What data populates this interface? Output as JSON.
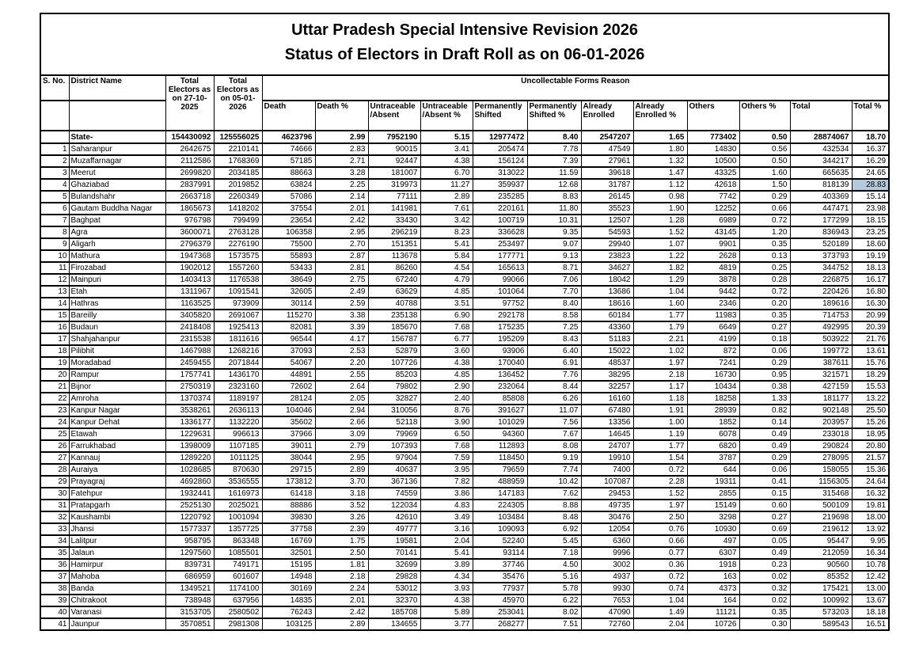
{
  "title_line1": "Uttar Pradesh Special Intensive Revision 2026",
  "title_line2": "Status of Electors in Draft Roll as on 06-01-2026",
  "table": {
    "header": {
      "s_no": "S. No.",
      "district": "District Name",
      "total_1": "Total Electors as on 27-10-2025",
      "total_2": "Total Electors as on 05-01-2026",
      "group": "Uncollectable Forms Reason",
      "sub": [
        "Death",
        "Death %",
        "Untraceable /Absent",
        "Untraceable /Absent %",
        "Permanently Shifted",
        "Permanently Shifted %",
        "Already Enrolled",
        "Already Enrolled %",
        "Others",
        "Others %",
        "Total",
        "Total %"
      ]
    },
    "state_row": [
      "",
      "State-",
      "154430092",
      "125556025",
      "4623796",
      "2.99",
      "7952190",
      "5.15",
      "12977472",
      "8.40",
      "2547207",
      "1.65",
      "773402",
      "0.50",
      "28874067",
      "18.70"
    ],
    "rows": [
      [
        "1",
        "Saharanpur",
        "2642675",
        "2210141",
        "74666",
        "2.83",
        "90015",
        "3.41",
        "205474",
        "7.78",
        "47549",
        "1.80",
        "14830",
        "0.56",
        "432534",
        "16.37"
      ],
      [
        "2",
        "Muzaffarnagar",
        "2112586",
        "1768369",
        "57185",
        "2.71",
        "92447",
        "4.38",
        "156124",
        "7.39",
        "27961",
        "1.32",
        "10500",
        "0.50",
        "344217",
        "16.29"
      ],
      [
        "3",
        "Meerut",
        "2699820",
        "2034185",
        "88663",
        "3.28",
        "181007",
        "6.70",
        "313022",
        "11.59",
        "39618",
        "1.47",
        "43325",
        "1.60",
        "665635",
        "24.65"
      ],
      [
        "4",
        "Ghaziabad",
        "2837991",
        "2019852",
        "63824",
        "2.25",
        "319973",
        "11.27",
        "359937",
        "12.68",
        "31787",
        "1.12",
        "42618",
        "1.50",
        "818139",
        "28.83"
      ],
      [
        "5",
        "Bulandshahr",
        "2663718",
        "2260349",
        "57086",
        "2.14",
        "77111",
        "2.89",
        "235285",
        "8.83",
        "26145",
        "0.98",
        "7742",
        "0.29",
        "403369",
        "15.14"
      ],
      [
        "6",
        "Gautam Buddha Nagar",
        "1865673",
        "1418202",
        "37554",
        "2.01",
        "141981",
        "7.61",
        "220161",
        "11.80",
        "35523",
        "1.90",
        "12252",
        "0.66",
        "447471",
        "23.98"
      ],
      [
        "7",
        "Baghpat",
        "976798",
        "799499",
        "23654",
        "2.42",
        "33430",
        "3.42",
        "100719",
        "10.31",
        "12507",
        "1.28",
        "6989",
        "0.72",
        "177299",
        "18.15"
      ],
      [
        "8",
        "Agra",
        "3600071",
        "2763128",
        "106358",
        "2.95",
        "296219",
        "8.23",
        "336628",
        "9.35",
        "54593",
        "1.52",
        "43145",
        "1.20",
        "836943",
        "23.25"
      ],
      [
        "9",
        "Aligarh",
        "2796379",
        "2276190",
        "75500",
        "2.70",
        "151351",
        "5.41",
        "253497",
        "9.07",
        "29940",
        "1.07",
        "9901",
        "0.35",
        "520189",
        "18.60"
      ],
      [
        "10",
        "Mathura",
        "1947368",
        "1573575",
        "55893",
        "2.87",
        "113678",
        "5.84",
        "177771",
        "9.13",
        "23823",
        "1.22",
        "2628",
        "0.13",
        "373793",
        "19.19"
      ],
      [
        "11",
        "Firozabad",
        "1902012",
        "1557260",
        "53433",
        "2.81",
        "86260",
        "4.54",
        "165613",
        "8.71",
        "34627",
        "1.82",
        "4819",
        "0.25",
        "344752",
        "18.13"
      ],
      [
        "12",
        "Mainpuri",
        "1403413",
        "1176538",
        "38649",
        "2.75",
        "67240",
        "4.79",
        "99066",
        "7.06",
        "18042",
        "1.29",
        "3878",
        "0.28",
        "226875",
        "16.17"
      ],
      [
        "13",
        "Etah",
        "1311967",
        "1091541",
        "32605",
        "2.49",
        "63629",
        "4.85",
        "101064",
        "7.70",
        "13686",
        "1.04",
        "9442",
        "0.72",
        "220426",
        "16.80"
      ],
      [
        "14",
        "Hathras",
        "1163525",
        "973909",
        "30114",
        "2.59",
        "40788",
        "3.51",
        "97752",
        "8.40",
        "18616",
        "1.60",
        "2346",
        "0.20",
        "189616",
        "16.30"
      ],
      [
        "15",
        "Bareilly",
        "3405820",
        "2691067",
        "115270",
        "3.38",
        "235138",
        "6.90",
        "292178",
        "8.58",
        "60184",
        "1.77",
        "11983",
        "0.35",
        "714753",
        "20.99"
      ],
      [
        "16",
        "Budaun",
        "2418408",
        "1925413",
        "82081",
        "3.39",
        "185670",
        "7.68",
        "175235",
        "7.25",
        "43360",
        "1.79",
        "6649",
        "0.27",
        "492995",
        "20.39"
      ],
      [
        "17",
        "Shahjahanpur",
        "2315538",
        "1811616",
        "96544",
        "4.17",
        "156787",
        "6.77",
        "195209",
        "8.43",
        "51183",
        "2.21",
        "4199",
        "0.18",
        "503922",
        "21.76"
      ],
      [
        "18",
        "Pilibhit",
        "1467988",
        "1268216",
        "37093",
        "2.53",
        "52879",
        "3.60",
        "93906",
        "6.40",
        "15022",
        "1.02",
        "872",
        "0.06",
        "199772",
        "13.61"
      ],
      [
        "19",
        "Moradabad",
        "2459455",
        "2071844",
        "54067",
        "2.20",
        "107726",
        "4.38",
        "170040",
        "6.91",
        "48537",
        "1.97",
        "7241",
        "0.29",
        "387611",
        "15.76"
      ],
      [
        "20",
        "Rampur",
        "1757741",
        "1436170",
        "44891",
        "2.55",
        "85203",
        "4.85",
        "136452",
        "7.76",
        "38295",
        "2.18",
        "16730",
        "0.95",
        "321571",
        "18.29"
      ],
      [
        "21",
        "Bijnor",
        "2750319",
        "2323160",
        "72602",
        "2.64",
        "79802",
        "2.90",
        "232064",
        "8.44",
        "32257",
        "1.17",
        "10434",
        "0.38",
        "427159",
        "15.53"
      ],
      [
        "22",
        "Amroha",
        "1370374",
        "1189197",
        "28124",
        "2.05",
        "32827",
        "2.40",
        "85808",
        "6.26",
        "16160",
        "1.18",
        "18258",
        "1.33",
        "181177",
        "13.22"
      ],
      [
        "23",
        "Kanpur Nagar",
        "3538261",
        "2636113",
        "104046",
        "2.94",
        "310056",
        "8.76",
        "391627",
        "11.07",
        "67480",
        "1.91",
        "28939",
        "0.82",
        "902148",
        "25.50"
      ],
      [
        "24",
        "Kanpur Dehat",
        "1336177",
        "1132220",
        "35602",
        "2.66",
        "52118",
        "3.90",
        "101029",
        "7.56",
        "13356",
        "1.00",
        "1852",
        "0.14",
        "203957",
        "15.26"
      ],
      [
        "25",
        "Etawah",
        "1229631",
        "996613",
        "37966",
        "3.09",
        "79969",
        "6.50",
        "94360",
        "7.67",
        "14645",
        "1.19",
        "6078",
        "0.49",
        "233018",
        "18.95"
      ],
      [
        "26",
        "Farrukhabad",
        "1398009",
        "1107185",
        "39011",
        "2.79",
        "107393",
        "7.68",
        "112893",
        "8.08",
        "24707",
        "1.77",
        "6820",
        "0.49",
        "290824",
        "20.80"
      ],
      [
        "27",
        "Kannauj",
        "1289220",
        "1011125",
        "38044",
        "2.95",
        "97904",
        "7.59",
        "118450",
        "9.19",
        "19910",
        "1.54",
        "3787",
        "0.29",
        "278095",
        "21.57"
      ],
      [
        "28",
        "Auraiya",
        "1028685",
        "870630",
        "29715",
        "2.89",
        "40637",
        "3.95",
        "79659",
        "7.74",
        "7400",
        "0.72",
        "644",
        "0.06",
        "158055",
        "15.36"
      ],
      [
        "29",
        "Prayagraj",
        "4692860",
        "3536555",
        "173812",
        "3.70",
        "367136",
        "7.82",
        "488959",
        "10.42",
        "107087",
        "2.28",
        "19311",
        "0.41",
        "1156305",
        "24.64"
      ],
      [
        "30",
        "Fatehpur",
        "1932441",
        "1616973",
        "61418",
        "3.18",
        "74559",
        "3.86",
        "147183",
        "7.62",
        "29453",
        "1.52",
        "2855",
        "0.15",
        "315468",
        "16.32"
      ],
      [
        "31",
        "Pratapgarh",
        "2525130",
        "2025021",
        "88886",
        "3.52",
        "122034",
        "4.83",
        "224305",
        "8.88",
        "49735",
        "1.97",
        "15149",
        "0.60",
        "500109",
        "19.81"
      ],
      [
        "32",
        "Kaushambi",
        "1220792",
        "1001094",
        "39830",
        "3.26",
        "42610",
        "3.49",
        "103484",
        "8.48",
        "30476",
        "2.50",
        "3298",
        "0.27",
        "219698",
        "18.00"
      ],
      [
        "33",
        "Jhansi",
        "1577337",
        "1357725",
        "37758",
        "2.39",
        "49777",
        "3.16",
        "109093",
        "6.92",
        "12054",
        "0.76",
        "10930",
        "0.69",
        "219612",
        "13.92"
      ],
      [
        "34",
        "Lalitpur",
        "958795",
        "863348",
        "16769",
        "1.75",
        "19581",
        "2.04",
        "52240",
        "5.45",
        "6360",
        "0.66",
        "497",
        "0.05",
        "95447",
        "9.95"
      ],
      [
        "35",
        "Jalaun",
        "1297560",
        "1085501",
        "32501",
        "2.50",
        "70141",
        "5.41",
        "93114",
        "7.18",
        "9996",
        "0.77",
        "6307",
        "0.49",
        "212059",
        "16.34"
      ],
      [
        "36",
        "Hamirpur",
        "839731",
        "749171",
        "15195",
        "1.81",
        "32699",
        "3.89",
        "37746",
        "4.50",
        "3002",
        "0.36",
        "1918",
        "0.23",
        "90560",
        "10.78"
      ],
      [
        "37",
        "Mahoba",
        "686959",
        "601607",
        "14948",
        "2.18",
        "29828",
        "4.34",
        "35476",
        "5.16",
        "4937",
        "0.72",
        "163",
        "0.02",
        "85352",
        "12.42"
      ],
      [
        "38",
        "Banda",
        "1349521",
        "1174100",
        "30169",
        "2.24",
        "53012",
        "3.93",
        "77937",
        "5.78",
        "9930",
        "0.74",
        "4373",
        "0.32",
        "175421",
        "13.00"
      ],
      [
        "39",
        "Chitrakoot",
        "738948",
        "637956",
        "14835",
        "2.01",
        "32370",
        "4.38",
        "45970",
        "6.22",
        "7653",
        "1.04",
        "164",
        "0.02",
        "100992",
        "13.67"
      ],
      [
        "40",
        "Varanasi",
        "3153705",
        "2580502",
        "76243",
        "2.42",
        "185708",
        "5.89",
        "253041",
        "8.02",
        "47090",
        "1.49",
        "11121",
        "0.35",
        "573203",
        "18.18"
      ],
      [
        "41",
        "Jaunpur",
        "3570851",
        "2981308",
        "103125",
        "2.89",
        "134655",
        "3.77",
        "268277",
        "7.51",
        "72760",
        "2.04",
        "10726",
        "0.30",
        "589543",
        "16.51"
      ]
    ],
    "column_names": [
      "sno",
      "district-name",
      "total-electors-27-10-2025",
      "total-electors-05-01-2026",
      "death",
      "death-pct",
      "untraceable-absent",
      "untraceable-absent-pct",
      "permanently-shifted",
      "permanently-shifted-pct",
      "already-enrolled",
      "already-enrolled-pct",
      "others",
      "others-pct",
      "total",
      "total-pct"
    ]
  },
  "highlight": {
    "row_s_no": "4",
    "column_index": 15,
    "value": "28.83",
    "color": "#b3c9de"
  }
}
